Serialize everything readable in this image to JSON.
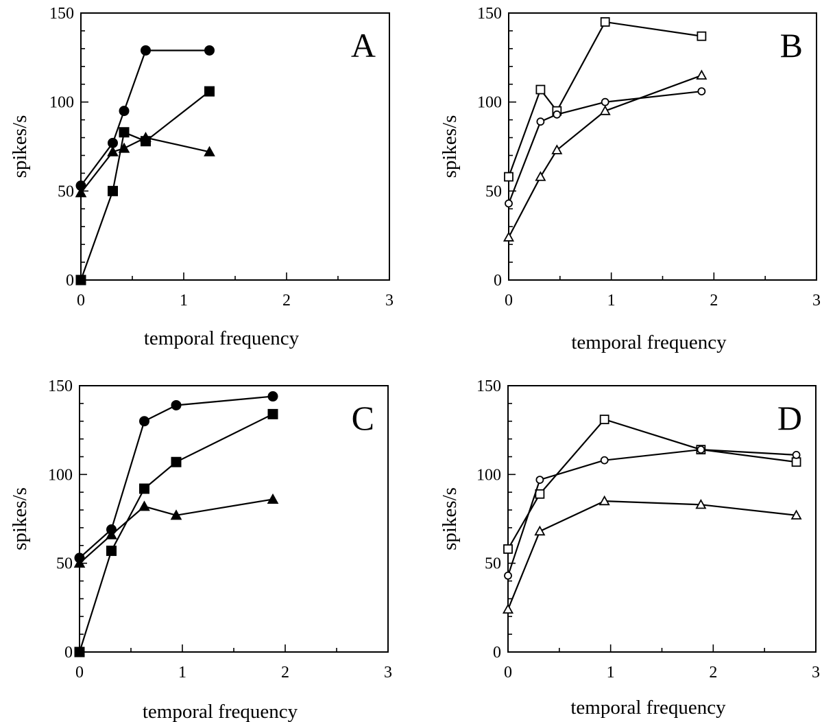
{
  "chart_data": [
    {
      "panel": "A",
      "type": "line",
      "xlabel": "temporal frequency",
      "ylabel": "spikes/s",
      "xlim": [
        0,
        3
      ],
      "ylim": [
        0,
        150
      ],
      "xticks": [
        "0",
        "1",
        "2",
        "3"
      ],
      "yticks": [
        "0",
        "50",
        "100",
        "150"
      ],
      "grid": false,
      "marker_fill": "filled",
      "series": [
        {
          "marker": "circle",
          "x": [
            0,
            0.31,
            0.42,
            0.63,
            1.25
          ],
          "y": [
            53,
            77,
            95,
            129,
            129
          ]
        },
        {
          "marker": "square",
          "x": [
            0,
            0.31,
            0.42,
            0.63,
            1.25
          ],
          "y": [
            0,
            50,
            83,
            78,
            106
          ]
        },
        {
          "marker": "triangle",
          "x": [
            0,
            0.31,
            0.42,
            0.63,
            1.25
          ],
          "y": [
            49,
            72,
            74,
            80,
            72
          ]
        }
      ]
    },
    {
      "panel": "B",
      "type": "line",
      "xlabel": "temporal frequency",
      "ylabel": "spikes/s",
      "xlim": [
        0,
        3
      ],
      "ylim": [
        0,
        150
      ],
      "xticks": [
        "0",
        "1",
        "2",
        "3"
      ],
      "yticks": [
        "0",
        "50",
        "100",
        "150"
      ],
      "grid": false,
      "marker_fill": "open",
      "series": [
        {
          "marker": "square",
          "x": [
            0,
            0.31,
            0.47,
            0.94,
            1.88
          ],
          "y": [
            58,
            107,
            95,
            145,
            137
          ]
        },
        {
          "marker": "circle",
          "x": [
            0,
            0.31,
            0.47,
            0.94,
            1.88
          ],
          "y": [
            43,
            89,
            93,
            100,
            106
          ]
        },
        {
          "marker": "triangle",
          "x": [
            0,
            0.31,
            0.47,
            0.94,
            1.88
          ],
          "y": [
            24,
            58,
            73,
            95,
            115
          ]
        }
      ]
    },
    {
      "panel": "C",
      "type": "line",
      "xlabel": "temporal frequency",
      "ylabel": "spikes/s",
      "xlim": [
        0,
        3
      ],
      "ylim": [
        0,
        150
      ],
      "xticks": [
        "0",
        "1",
        "2",
        "3"
      ],
      "yticks": [
        "0",
        "50",
        "100",
        "150"
      ],
      "grid": false,
      "marker_fill": "filled",
      "series": [
        {
          "marker": "circle",
          "x": [
            0,
            0.31,
            0.63,
            0.94,
            1.88
          ],
          "y": [
            53,
            69,
            130,
            139,
            144
          ]
        },
        {
          "marker": "square",
          "x": [
            0,
            0.31,
            0.63,
            0.94,
            1.88
          ],
          "y": [
            0,
            57,
            92,
            107,
            134
          ]
        },
        {
          "marker": "triangle",
          "x": [
            0,
            0.31,
            0.63,
            0.94,
            1.88
          ],
          "y": [
            50,
            66,
            82,
            77,
            86
          ]
        }
      ]
    },
    {
      "panel": "D",
      "type": "line",
      "xlabel": "temporal frequency",
      "ylabel": "spikes/s",
      "xlim": [
        0,
        3
      ],
      "ylim": [
        0,
        150
      ],
      "xticks": [
        "0",
        "1",
        "2",
        "3"
      ],
      "yticks": [
        "0",
        "50",
        "100",
        "150"
      ],
      "grid": false,
      "marker_fill": "open",
      "series": [
        {
          "marker": "square",
          "x": [
            0,
            0.31,
            0.94,
            1.88,
            2.81
          ],
          "y": [
            58,
            89,
            131,
            114,
            107
          ]
        },
        {
          "marker": "circle",
          "x": [
            0,
            0.31,
            0.94,
            1.88,
            2.81
          ],
          "y": [
            43,
            97,
            108,
            114,
            111
          ]
        },
        {
          "marker": "triangle",
          "x": [
            0,
            0.31,
            0.94,
            1.88,
            2.81
          ],
          "y": [
            24,
            68,
            85,
            83,
            77
          ]
        }
      ]
    }
  ]
}
